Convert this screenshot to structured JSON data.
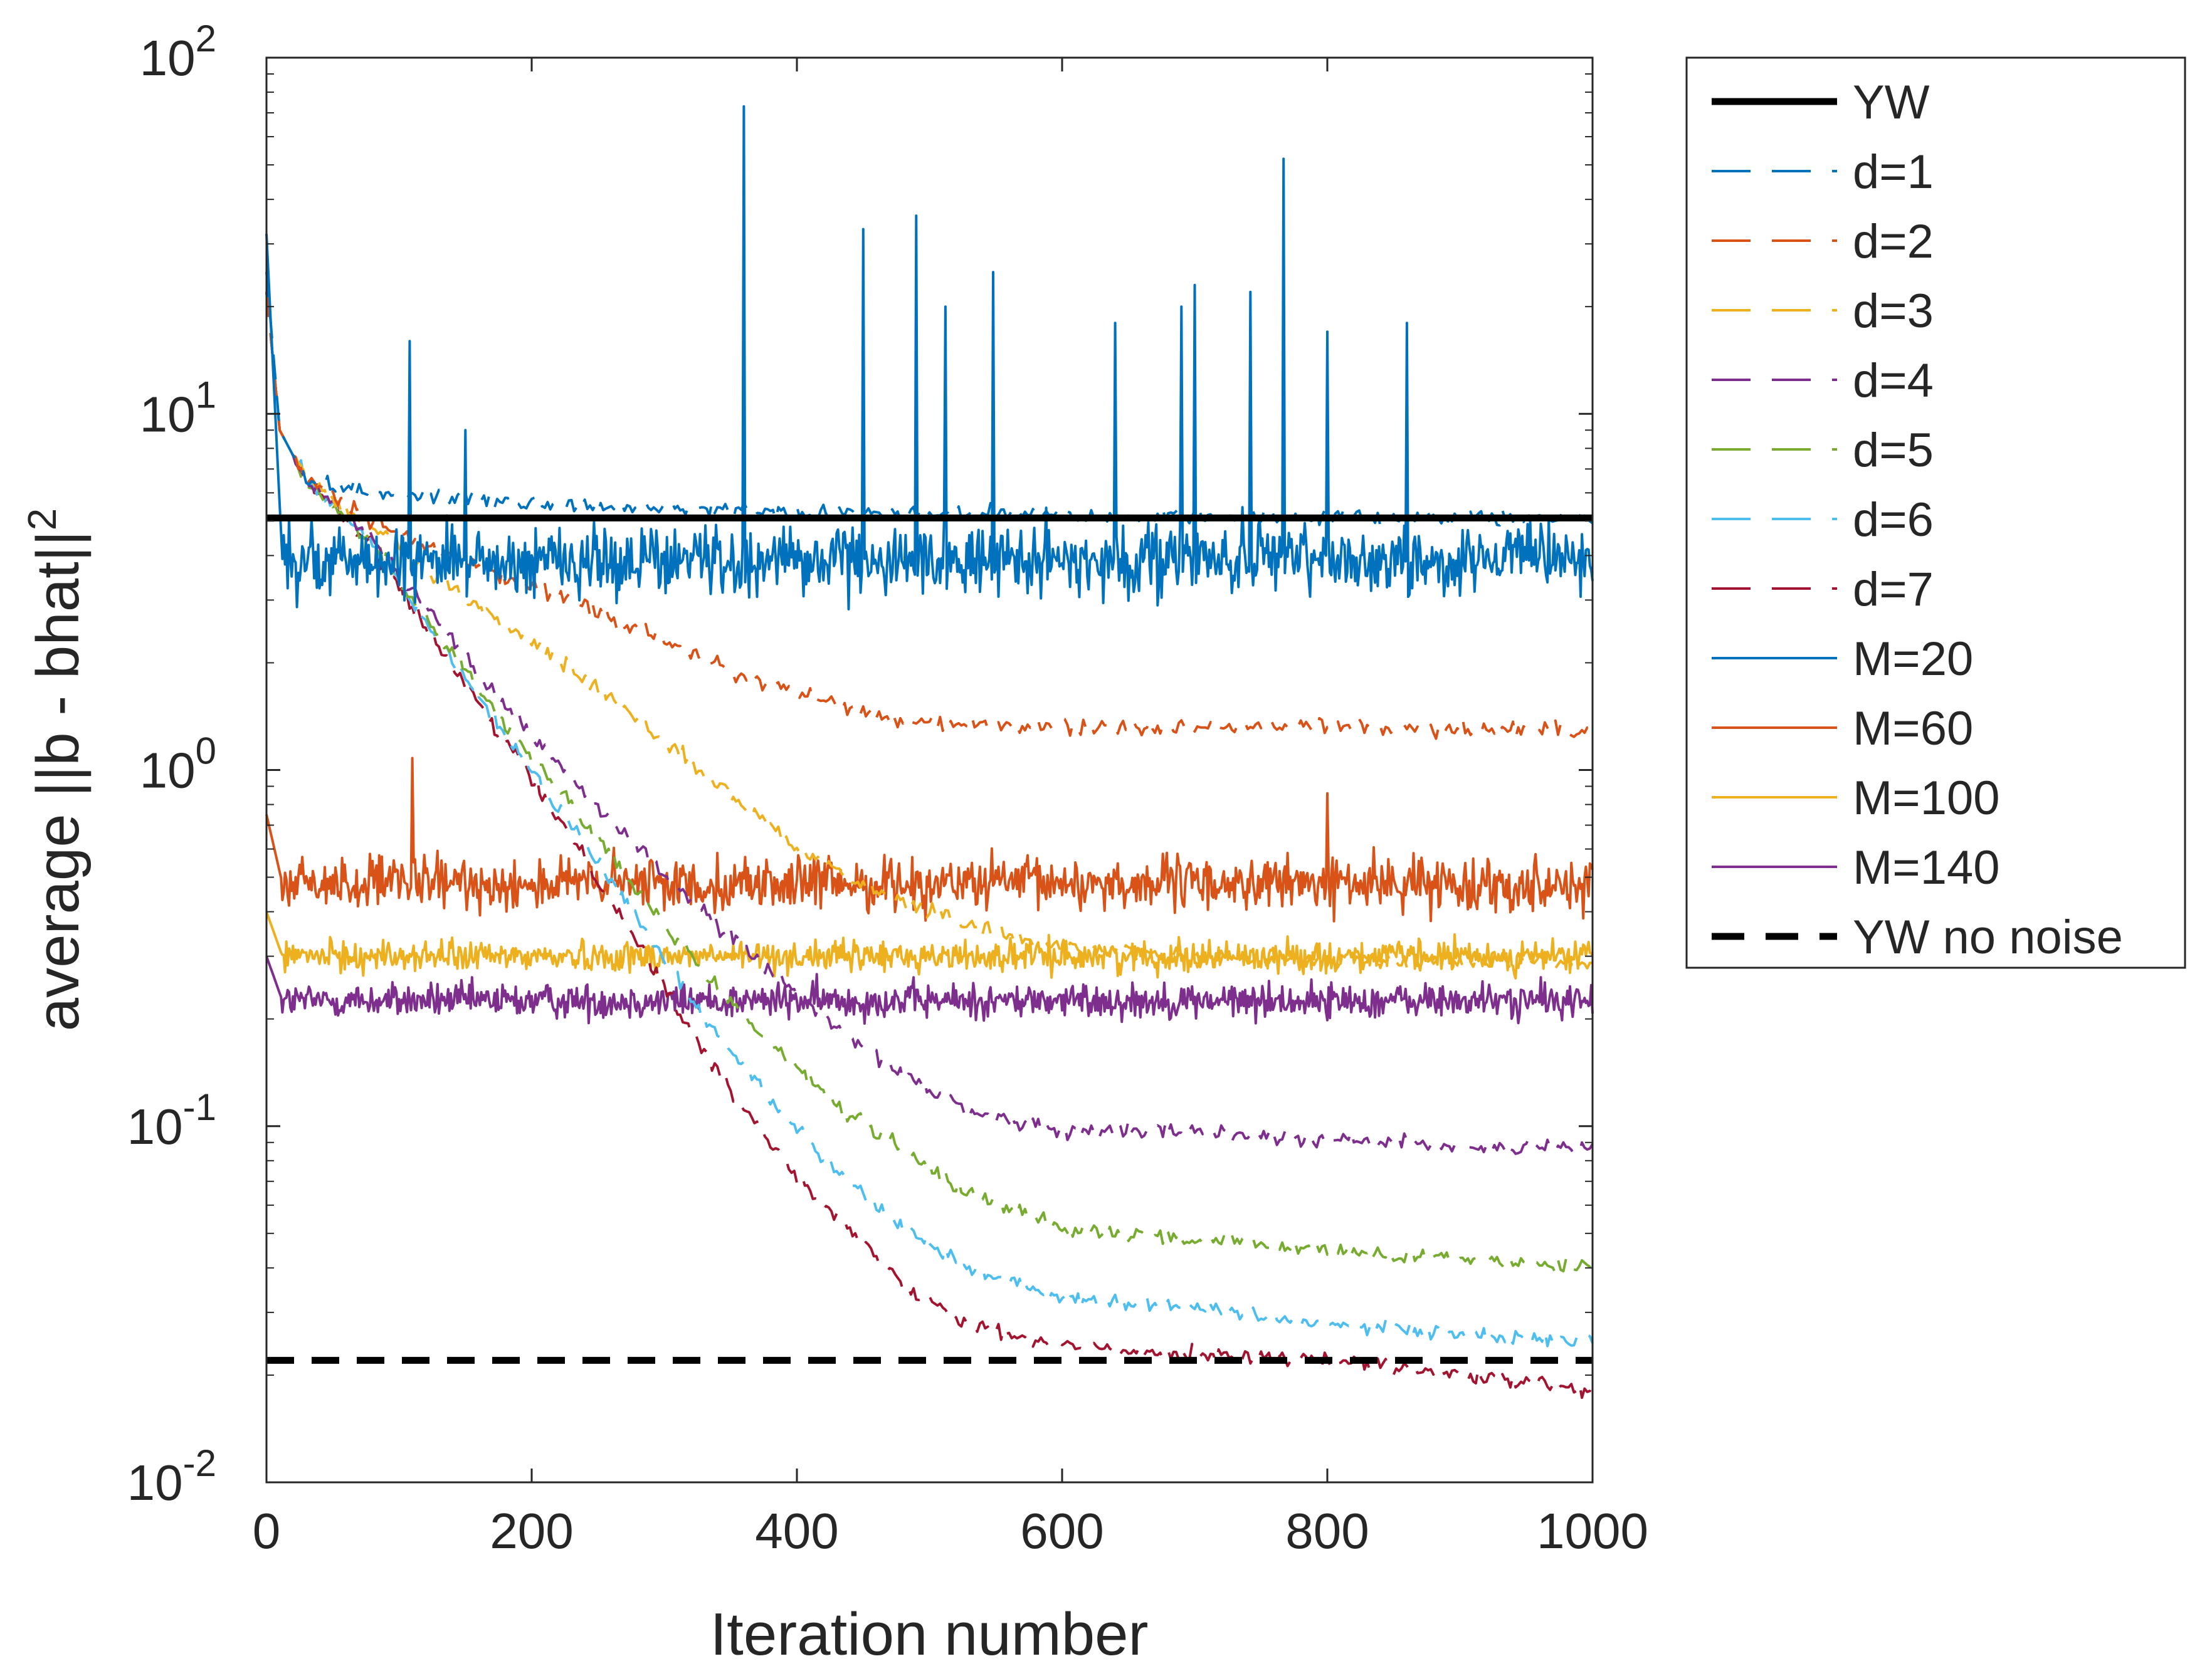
{
  "chart_data": {
    "type": "line",
    "title": "",
    "xlabel": "Iteration number",
    "ylabel_base": "average ||b - bhat||",
    "ylabel_exp": "2",
    "yscale": "log",
    "xlim": [
      0,
      1000
    ],
    "ylim": [
      0.01,
      100
    ],
    "grid": false,
    "legend_position": "outside-right",
    "xticks": [
      0,
      200,
      400,
      600,
      800,
      1000
    ],
    "xtick_labels": [
      "0",
      "200",
      "400",
      "600",
      "800",
      "1000"
    ],
    "yticks": [
      0.01,
      0.1,
      1,
      10,
      100
    ],
    "ytick_labels": [
      {
        "base": "10",
        "exp": "-2"
      },
      {
        "base": "10",
        "exp": "-1"
      },
      {
        "base": "10",
        "exp": "0"
      },
      {
        "base": "10",
        "exp": "1"
      },
      {
        "base": "10",
        "exp": "2"
      }
    ],
    "series": [
      {
        "name": "YW",
        "color": "#000000",
        "style": "solid-thick",
        "kind": "const",
        "value": 5.1
      },
      {
        "name": "d=1",
        "color": "#0072BD",
        "style": "dashed",
        "kind": "points",
        "x": [
          0,
          10,
          30,
          80,
          150,
          250,
          400,
          600,
          800,
          1000
        ],
        "y": [
          25,
          9,
          6.5,
          6.0,
          5.8,
          5.5,
          5.3,
          5.2,
          5.15,
          5.1
        ]
      },
      {
        "name": "d=2",
        "color": "#D95319",
        "style": "dashed",
        "kind": "points",
        "x": [
          0,
          10,
          30,
          80,
          150,
          200,
          250,
          300,
          350,
          400,
          450,
          500,
          600,
          700,
          800,
          900,
          1000
        ],
        "y": [
          22,
          9,
          6.5,
          5.0,
          3.8,
          3.3,
          2.8,
          2.3,
          1.9,
          1.65,
          1.45,
          1.35,
          1.32,
          1.32,
          1.32,
          1.3,
          1.3
        ]
      },
      {
        "name": "d=3",
        "color": "#EDB120",
        "style": "dashed",
        "kind": "points",
        "x": [
          0,
          10,
          30,
          80,
          150,
          200,
          250,
          300,
          350,
          400,
          450,
          500,
          550,
          600,
          700,
          800,
          900,
          1000
        ],
        "y": [
          22,
          9,
          6.5,
          4.8,
          3.0,
          2.3,
          1.7,
          1.2,
          0.85,
          0.6,
          0.48,
          0.4,
          0.35,
          0.32,
          0.3,
          0.29,
          0.29,
          0.29
        ]
      },
      {
        "name": "d=4",
        "color": "#7E2F8E",
        "style": "dashed",
        "kind": "points",
        "x": [
          0,
          10,
          30,
          80,
          130,
          180,
          230,
          280,
          330,
          380,
          430,
          480,
          530,
          600,
          700,
          800,
          900,
          1000
        ],
        "y": [
          22,
          9,
          6.5,
          4.5,
          2.6,
          1.5,
          0.95,
          0.6,
          0.4,
          0.27,
          0.19,
          0.14,
          0.11,
          0.097,
          0.097,
          0.092,
          0.088,
          0.086
        ]
      },
      {
        "name": "d=5",
        "color": "#77AC30",
        "style": "dashed",
        "kind": "points",
        "x": [
          0,
          10,
          30,
          80,
          130,
          180,
          230,
          280,
          330,
          380,
          430,
          480,
          530,
          600,
          700,
          800,
          900,
          1000
        ],
        "y": [
          22,
          9,
          6.5,
          4.3,
          2.4,
          1.35,
          0.8,
          0.45,
          0.27,
          0.17,
          0.115,
          0.085,
          0.065,
          0.052,
          0.048,
          0.045,
          0.042,
          0.041
        ]
      },
      {
        "name": "d=6",
        "color": "#4DBEEE",
        "style": "dashed",
        "kind": "points",
        "x": [
          0,
          10,
          30,
          80,
          130,
          180,
          230,
          280,
          330,
          380,
          430,
          480,
          530,
          600,
          700,
          800,
          900,
          1000
        ],
        "y": [
          22,
          9,
          6.5,
          4.3,
          2.3,
          1.25,
          0.7,
          0.38,
          0.2,
          0.12,
          0.075,
          0.052,
          0.04,
          0.033,
          0.031,
          0.028,
          0.026,
          0.025
        ]
      },
      {
        "name": "d=7",
        "color": "#A2142F",
        "style": "dashed",
        "kind": "points",
        "x": [
          0,
          10,
          30,
          80,
          130,
          180,
          230,
          280,
          330,
          380,
          430,
          480,
          530,
          600,
          700,
          800,
          900,
          1000
        ],
        "y": [
          22,
          9,
          6.5,
          4.2,
          2.2,
          1.2,
          0.65,
          0.33,
          0.16,
          0.09,
          0.055,
          0.036,
          0.028,
          0.024,
          0.023,
          0.022,
          0.02,
          0.018
        ]
      },
      {
        "name": "M=20",
        "color": "#0072BD",
        "style": "solid",
        "kind": "noisy",
        "center": 3.9,
        "spread": 0.16,
        "start": 32,
        "spikes": [
          [
            108,
            16
          ],
          [
            150,
            9
          ],
          [
            360,
            73
          ],
          [
            450,
            33
          ],
          [
            490,
            36
          ],
          [
            512,
            20
          ],
          [
            548,
            25
          ],
          [
            640,
            18
          ],
          [
            690,
            20
          ],
          [
            700,
            23
          ],
          [
            742,
            22
          ],
          [
            767,
            52
          ],
          [
            800,
            17
          ],
          [
            860,
            18
          ]
        ]
      },
      {
        "name": "M=60",
        "color": "#D95319",
        "style": "solid",
        "kind": "noisy",
        "center": 0.48,
        "spread": 0.12,
        "start": 0.75,
        "spikes": [
          [
            110,
            1.08
          ],
          [
            800,
            0.86
          ]
        ]
      },
      {
        "name": "M=100",
        "color": "#EDB120",
        "style": "solid",
        "kind": "noisy",
        "center": 0.3,
        "spread": 0.07,
        "start": 0.4,
        "spikes": []
      },
      {
        "name": "M=140",
        "color": "#7E2F8E",
        "style": "solid",
        "kind": "noisy",
        "center": 0.225,
        "spread": 0.08,
        "start": 0.3,
        "spikes": []
      },
      {
        "name": "YW no noise",
        "color": "#000000",
        "style": "dashed-thick",
        "kind": "const",
        "value": 0.022
      }
    ]
  }
}
